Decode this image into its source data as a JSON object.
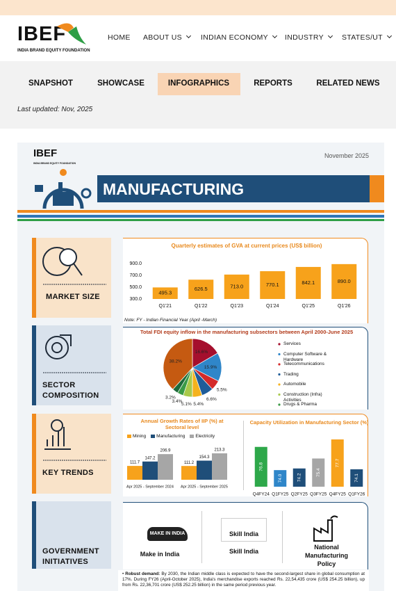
{
  "header": {
    "logo": "IBEF",
    "logo_tagline": "INDIA BRAND EQUITY FOUNDATION",
    "nav": [
      "HOME",
      "ABOUT US",
      "INDIAN ECONOMY",
      "INDUSTRY",
      "STATES/UT"
    ]
  },
  "tabs": {
    "items": [
      "SNAPSHOT",
      "SHOWCASE",
      "INFOGRAPHICS",
      "REPORTS",
      "RELATED NEWS"
    ],
    "active": 2
  },
  "last_updated": "Last updated: Nov, 2025",
  "infographic": {
    "logo": "IBEF",
    "logo_tagline": "INDIA BRAND EQUITY FOUNDATION",
    "date": "November 2025",
    "title": "MANUFACTURING",
    "sections": [
      "MARKET SIZE",
      "SECTOR COMPOSITION",
      "KEY TRENDS",
      "GOVERNMENT INITIATIVES"
    ],
    "note": "Note: FY - Indian Financial Year (April -March)",
    "initiatives": [
      {
        "logo_text": "MAKE IN INDIA",
        "label": "Make in India"
      },
      {
        "logo_text": "Skill India",
        "label": "Skill India"
      },
      {
        "label": "National Manufacturing Policy"
      }
    ],
    "robust_label": "Robust demand:",
    "robust_text": "By 2030, the Indian middle class is expected to have the second-largest share in global consumption at 17%. During FY26 (April-October 2025), India's merchandise exports reached Rs. 22,54,435 crore (US$ 254.25 billion), up from Rs. 22,36,701 crore (US$ 252.25 billion) in the same period previous year."
  },
  "chart_data": [
    {
      "type": "bar",
      "title": "Quarterly estimates of GVA at current prices (US$ billion)",
      "categories": [
        "Q1'21",
        "Q1'22",
        "Q1'23",
        "Q1'24",
        "Q1'25",
        "Q1'26"
      ],
      "values": [
        495.3,
        626.5,
        713.0,
        770.1,
        842.1,
        890.0
      ],
      "value_labels": [
        "495.3",
        "626.5",
        "713.0",
        "770.1",
        "842.1",
        "890.0"
      ],
      "color": "#f7a21b",
      "ylim": [
        300,
        900
      ],
      "yticks": [
        {
          "value": 300,
          "label": "300.0"
        },
        {
          "value": 500,
          "label": "500.0"
        },
        {
          "value": 700,
          "label": "700.0"
        },
        {
          "value": 900,
          "label": "900.0"
        }
      ]
    },
    {
      "type": "pie",
      "title": "Total FDI equity inflow in the manufacturing subsectors between April 2000-June 2025",
      "categories": [
        "Services",
        "Computer Software & Hardware",
        "Telecommunications",
        "Trading",
        "Automobile",
        "Construction (Infra) Activities",
        "Drugs & Pharma",
        null,
        null
      ],
      "values": [
        16.6,
        15.9,
        5.5,
        6.6,
        5.4,
        5.1,
        3.4,
        3.2,
        38.2
      ],
      "value_labels": [
        "16.6%",
        "15.9%",
        "5.5%",
        "6.6%",
        "5.4%",
        "5.1%",
        "3.4%",
        "3.2%",
        "38.2%"
      ],
      "colors": [
        "#a50f2d",
        "#2f86c9",
        "#d42a2a",
        "#1f5c99",
        "#f5b21d",
        "#a8c94a",
        "#3a9a46",
        "#1d6b3a",
        "#c55a11"
      ]
    },
    {
      "type": "bar",
      "title": "Annual Growth Rates of IIP (%) at Sectoral level",
      "categories": [
        "Apr 2025 - September 2024",
        "Apr 2025 - September 2025"
      ],
      "series": [
        {
          "name": "Mining",
          "color": "#f7a21b",
          "values": [
            111.7,
            111.2
          ]
        },
        {
          "name": "Manufacturing",
          "color": "#1f4e79",
          "values": [
            147.2,
            154.3
          ]
        },
        {
          "name": "Electricity",
          "color": "#a6a6a6",
          "values": [
            206.9,
            213.3
          ]
        }
      ]
    },
    {
      "type": "bar",
      "title": "Capacity Utilization in Manufacturing Sector (%)",
      "categories": [
        "Q4FY24",
        "Q1FY25",
        "Q2FY25",
        "Q3FY25",
        "Q4FY25",
        "Q1FY26"
      ],
      "values": [
        76.8,
        74.0,
        74.2,
        75.4,
        77.7,
        74.1
      ],
      "value_labels": [
        "76.8",
        "74.0",
        "74.2",
        "75.4",
        "77.7",
        "74.1"
      ],
      "colors": [
        "#2ea84a",
        "#2f86c9",
        "#1f4e79",
        "#a6a6a6",
        "#f7a21b",
        "#1f4e79"
      ]
    }
  ]
}
